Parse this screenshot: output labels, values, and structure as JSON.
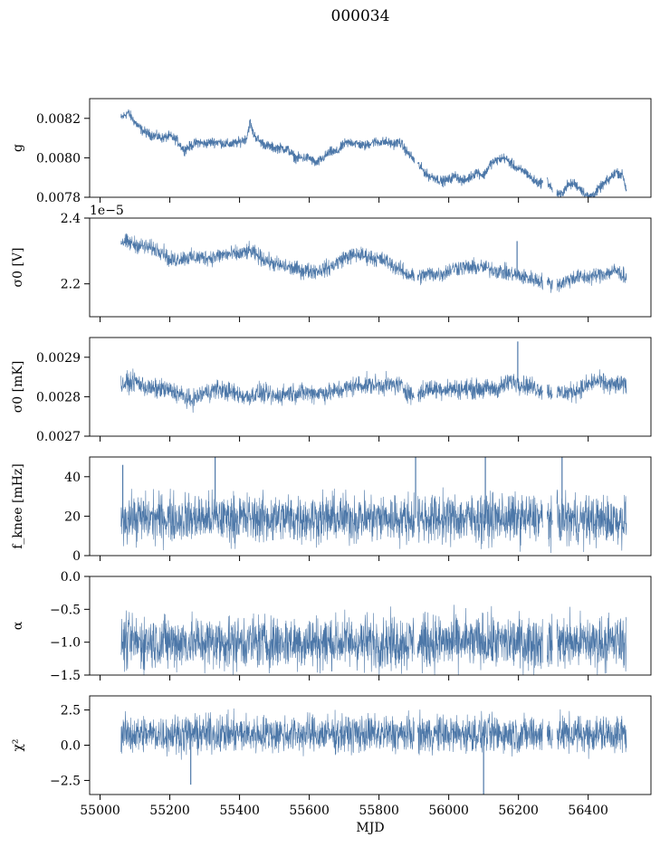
{
  "figure_title": "000034",
  "colors": {
    "series": "#4c77a8"
  },
  "chart_data": [
    {
      "type": "line",
      "panel": "g",
      "ylabel": "g",
      "ylim": [
        0.0078,
        0.0083
      ],
      "xlim": [
        54970,
        56580
      ],
      "yticks": [
        0.0078,
        0.008,
        0.0082
      ],
      "ytick_labels": [
        "0.0078",
        "0.0080",
        "0.0082"
      ],
      "offset_text": "",
      "series": [
        {
          "x": [
            55060,
            55080,
            55100,
            55120,
            55140,
            55160,
            55180,
            55200,
            55220,
            55240,
            55260,
            55280,
            55300,
            55320,
            55340,
            55360,
            55380,
            55400,
            55420,
            55430,
            55440,
            55460,
            55480,
            55500,
            55520,
            55540,
            55560,
            55580,
            55600,
            55620,
            55640,
            55660,
            55680,
            55700,
            55720,
            55740,
            55760,
            55780,
            55800,
            55820,
            55840,
            55860,
            55880,
            55900,
            55920,
            55940,
            55960,
            55980,
            56000,
            56020,
            56040,
            56060,
            56080,
            56100,
            56120,
            56140,
            56160,
            56180,
            56200,
            56220,
            56240,
            56260,
            56280,
            56300,
            56320,
            56340,
            56360,
            56380,
            56400,
            56420,
            56440,
            56460,
            56480,
            56500,
            56510
          ],
          "values": [
            0.0082,
            0.00823,
            0.00818,
            0.00814,
            0.00812,
            0.00811,
            0.0081,
            0.00811,
            0.00809,
            0.00804,
            0.00806,
            0.00808,
            0.00807,
            0.00808,
            0.00808,
            0.00807,
            0.00807,
            0.00808,
            0.0081,
            0.00818,
            0.00812,
            0.00808,
            0.00806,
            0.00805,
            0.00805,
            0.00804,
            0.008,
            0.008,
            0.008,
            0.00797,
            0.008,
            0.00803,
            0.00803,
            0.00807,
            0.00808,
            0.00807,
            0.00806,
            0.00808,
            0.00808,
            0.00808,
            0.00807,
            0.00808,
            0.00803,
            0.00799,
            0.00795,
            0.00791,
            0.0079,
            0.00788,
            0.00789,
            0.00791,
            0.00788,
            0.0079,
            0.00793,
            0.00791,
            0.00797,
            0.00799,
            0.008,
            0.00797,
            0.00794,
            0.00793,
            0.00789,
            0.00787,
            0.00789,
            0.00783,
            0.00781,
            0.00786,
            0.00787,
            0.00784,
            0.0078,
            0.00782,
            0.00786,
            0.00789,
            0.00793,
            0.00791,
            0.00783
          ],
          "noise": 1.2e-05
        }
      ]
    },
    {
      "type": "line",
      "panel": "sigma0_V",
      "ylabel": "σ0 [V]",
      "ylim": [
        2.1e-05,
        2.4e-05
      ],
      "xlim": [
        54970,
        56580
      ],
      "yticks": [
        2.2e-05,
        2.4e-05
      ],
      "ytick_labels": [
        "2.2",
        "2.4"
      ],
      "offset_text": "1e−5",
      "series": [
        {
          "x": [
            55060,
            55100,
            55140,
            55180,
            55200,
            55240,
            55280,
            55320,
            55360,
            55400,
            55430,
            55460,
            55500,
            55540,
            55580,
            55620,
            55660,
            55700,
            55740,
            55780,
            55820,
            55850,
            55880,
            55910,
            55940,
            55980,
            56020,
            56060,
            56100,
            56140,
            56180,
            56220,
            56260,
            56290,
            56320,
            56360,
            56400,
            56440,
            56480,
            56510
          ],
          "values": [
            2.33e-05,
            2.32e-05,
            2.31e-05,
            2.3e-05,
            2.27e-05,
            2.28e-05,
            2.28e-05,
            2.28e-05,
            2.29e-05,
            2.29e-05,
            2.3e-05,
            2.28e-05,
            2.26e-05,
            2.25e-05,
            2.24e-05,
            2.24e-05,
            2.25e-05,
            2.28e-05,
            2.29e-05,
            2.28e-05,
            2.27e-05,
            2.25e-05,
            2.23e-05,
            2.22e-05,
            2.23e-05,
            2.23e-05,
            2.25e-05,
            2.25e-05,
            2.25e-05,
            2.24e-05,
            2.23e-05,
            2.22e-05,
            2.21e-05,
            2.2e-05,
            2.2e-05,
            2.22e-05,
            2.22e-05,
            2.23e-05,
            2.24e-05,
            2.22e-05
          ],
          "noise": 1.2e-07,
          "spikes": [
            {
              "x": 56196,
              "value": 2.33e-05
            }
          ]
        }
      ]
    },
    {
      "type": "line",
      "panel": "sigma0_mK",
      "ylabel": "σ0 [mK]",
      "ylim": [
        0.0027,
        0.00295
      ],
      "xlim": [
        54970,
        56580
      ],
      "yticks": [
        0.0027,
        0.0028,
        0.0029
      ],
      "ytick_labels": [
        "0.0027",
        "0.0028",
        "0.0029"
      ],
      "offset_text": "",
      "series": [
        {
          "x": [
            55060,
            55100,
            55140,
            55180,
            55220,
            55260,
            55300,
            55340,
            55380,
            55420,
            55460,
            55500,
            55540,
            55580,
            55620,
            55660,
            55700,
            55740,
            55780,
            55820,
            55860,
            55900,
            55940,
            55980,
            56020,
            56060,
            56100,
            56140,
            56180,
            56220,
            56260,
            56300,
            56340,
            56380,
            56420,
            56460,
            56500,
            56510
          ],
          "values": [
            0.00283,
            0.00284,
            0.00282,
            0.00282,
            0.00281,
            0.00279,
            0.00281,
            0.00282,
            0.00281,
            0.0028,
            0.00281,
            0.0028,
            0.00281,
            0.00281,
            0.00281,
            0.00281,
            0.00282,
            0.00283,
            0.00283,
            0.00283,
            0.00283,
            0.0028,
            0.00282,
            0.00282,
            0.00282,
            0.00282,
            0.00282,
            0.00282,
            0.00284,
            0.00283,
            0.00282,
            0.00281,
            0.00281,
            0.00282,
            0.00284,
            0.00283,
            0.00283,
            0.00283
          ],
          "noise": 1.2e-05,
          "spikes": [
            {
              "x": 56198,
              "value": 0.00294
            }
          ]
        }
      ]
    },
    {
      "type": "line",
      "panel": "fknee",
      "ylabel": "f_knee [mHz]",
      "ylim": [
        0,
        50
      ],
      "xlim": [
        54970,
        56580
      ],
      "yticks": [
        0,
        20,
        40
      ],
      "ytick_labels": [
        "0",
        "20",
        "40"
      ],
      "offset_text": "",
      "series": [
        {
          "x": [
            55060,
            55200,
            55400,
            55600,
            55800,
            55900,
            56000,
            56200,
            56400,
            56510
          ],
          "values": [
            19,
            19,
            19,
            19,
            19,
            19,
            19,
            19,
            18,
            18
          ],
          "noise": 6,
          "spikes": [
            {
              "x": 55065,
              "value": 46
            },
            {
              "x": 55330,
              "value": 50
            },
            {
              "x": 55905,
              "value": 50
            },
            {
              "x": 56105,
              "value": 50
            },
            {
              "x": 56325,
              "value": 50
            }
          ]
        }
      ]
    },
    {
      "type": "line",
      "panel": "alpha",
      "ylabel": "α",
      "ylim": [
        -1.5,
        0.0
      ],
      "xlim": [
        54970,
        56580
      ],
      "yticks": [
        -1.5,
        -1.0,
        -0.5,
        0.0
      ],
      "ytick_labels": [
        "−1.5",
        "−1.0",
        "−0.5",
        "0.0"
      ],
      "offset_text": "",
      "series": [
        {
          "x": [
            55060,
            55200,
            55400,
            55600,
            55800,
            55900,
            56000,
            56200,
            56400,
            56510
          ],
          "values": [
            -1.0,
            -1.0,
            -1.0,
            -1.0,
            -1.0,
            -1.0,
            -1.0,
            -1.0,
            -1.0,
            -1.0
          ],
          "noise": 0.2
        }
      ]
    },
    {
      "type": "line",
      "panel": "chi2",
      "ylabel": "χ²",
      "ylim": [
        -3.5,
        3.5
      ],
      "xlim": [
        54970,
        56580
      ],
      "yticks": [
        -2.5,
        0.0,
        2.5
      ],
      "ytick_labels": [
        "−2.5",
        "0.0",
        "2.5"
      ],
      "offset_text": "",
      "xticks": [
        55000,
        55200,
        55400,
        55600,
        55800,
        56000,
        56200,
        56400
      ],
      "xtick_labels": [
        "55000",
        "55200",
        "55400",
        "55600",
        "55800",
        "56000",
        "56200",
        "56400"
      ],
      "xlabel": "MJD",
      "series": [
        {
          "x": [
            55060,
            55200,
            55400,
            55600,
            55800,
            55900,
            56000,
            56200,
            56400,
            56510
          ],
          "values": [
            0.8,
            0.8,
            0.8,
            0.8,
            0.8,
            0.8,
            0.8,
            0.8,
            0.8,
            0.8
          ],
          "noise": 0.65,
          "spikes": [
            {
              "x": 55260,
              "value": -2.8
            },
            {
              "x": 56100,
              "value": -3.5
            }
          ]
        }
      ]
    }
  ],
  "gaps": [
    [
      55902,
      55910
    ],
    [
      56270,
      56282
    ],
    [
      56298,
      56310
    ]
  ]
}
